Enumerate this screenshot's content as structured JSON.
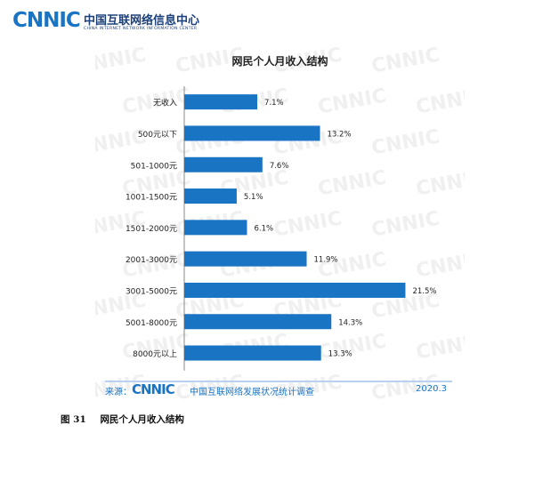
{
  "header": {
    "logo_mark": "CNNIC",
    "logo_cn": "中国互联网络信息中心",
    "logo_en": "CHINA INTERNET NETWORK INFORMATION CENTER"
  },
  "watermark": "CNNIC",
  "chart_data": {
    "type": "bar",
    "orientation": "horizontal",
    "title": "网民个人月收入结构",
    "categories": [
      "无收入",
      "500元以下",
      "501-1000元",
      "1001-1500元",
      "1501-2000元",
      "2001-3000元",
      "3001-5000元",
      "5001-8000元",
      "8000元以上"
    ],
    "values": [
      7.1,
      13.2,
      7.6,
      5.1,
      6.1,
      11.9,
      21.5,
      14.3,
      13.3
    ],
    "value_labels": [
      "7.1%",
      "13.2%",
      "7.6%",
      "5.1%",
      "6.1%",
      "11.9%",
      "21.5%",
      "14.3%",
      "13.3%"
    ],
    "xlim": [
      0,
      22.5
    ],
    "bar_color": "#1a74c4",
    "grid": false
  },
  "source": {
    "label": "来源：",
    "logo": "CNNIC",
    "text": "中国互联网络发展状况统计调查",
    "date": "2020.3"
  },
  "caption": {
    "number": "图 31",
    "text": "网民个人月收入结构"
  }
}
